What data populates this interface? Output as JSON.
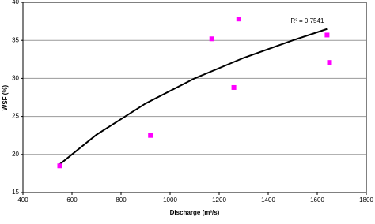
{
  "chart_data": {
    "type": "scatter",
    "x_label": "Discharge (m³/s)",
    "y_label": "WSF (%)",
    "x": [
      550,
      920,
      1170,
      1280,
      1260,
      1640,
      1650
    ],
    "y": [
      18.5,
      22.5,
      35.2,
      37.8,
      28.8,
      35.7,
      32.1
    ],
    "color": "#ff00ff",
    "trendline": {
      "x": [
        550,
        700,
        900,
        1100,
        1300,
        1500,
        1640
      ],
      "y": [
        18.7,
        22.6,
        26.7,
        30.0,
        32.7,
        35.0,
        36.5
      ],
      "color": "#000000",
      "annotation": "R² = 0.7541"
    },
    "xlim": [
      400,
      1800
    ],
    "xticks": [
      400,
      600,
      800,
      1000,
      1200,
      1400,
      1600,
      1800
    ],
    "ylim": [
      15,
      40
    ],
    "yticks": [
      15,
      20,
      25,
      30,
      35,
      40
    ],
    "grid": true
  }
}
